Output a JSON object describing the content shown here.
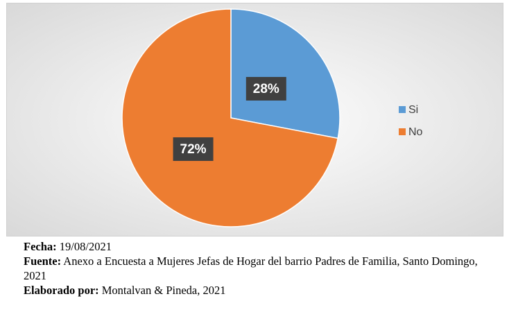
{
  "chart_data": {
    "type": "pie",
    "categories": [
      "Si",
      "No"
    ],
    "values": [
      28,
      72
    ],
    "value_labels": [
      "28%",
      "72%"
    ],
    "colors": [
      "#5b9bd5",
      "#ed7d31"
    ],
    "legend": "right"
  },
  "caption": {
    "fecha_label": "Fecha:",
    "fecha": "19/08/2021",
    "fuente_label": "Fuente:",
    "fuente": "Anexo a Encuesta a Mujeres Jefas de Hogar del barrio Padres de Familia, Santo Domingo, 2021",
    "elaborado_label": "Elaborado por:",
    "elaborado": "Montalvan & Pineda, 2021"
  }
}
